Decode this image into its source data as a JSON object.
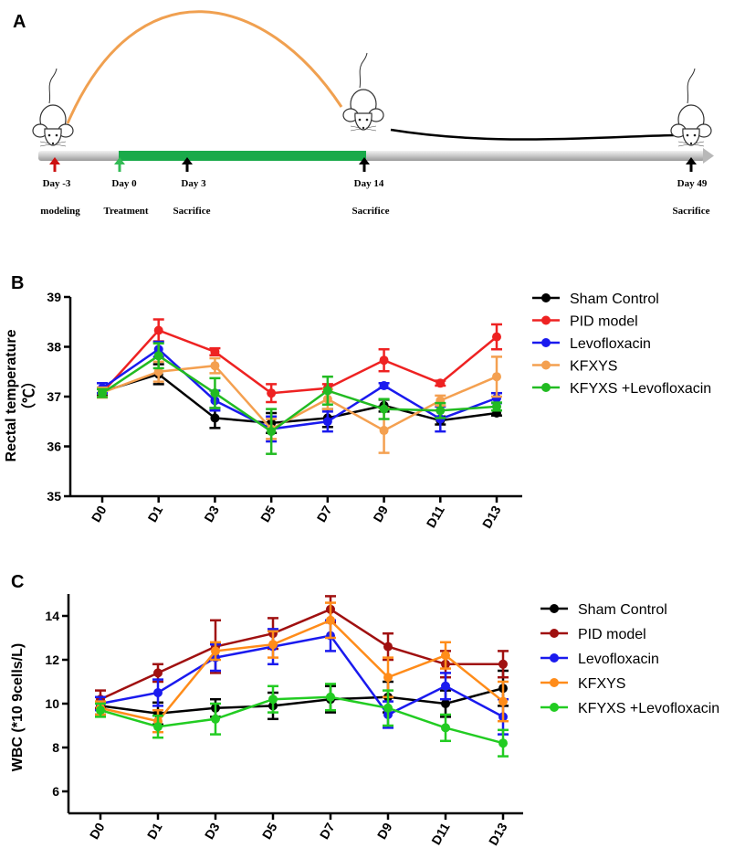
{
  "panels": {
    "a": "A",
    "b": "B",
    "c": "C"
  },
  "timeline": {
    "days": [
      "Day -3",
      "Day 0",
      "Day 3",
      "Day 14",
      "Day 49"
    ],
    "events": [
      "modeling",
      "Treatment",
      "Sacrifice",
      "Sacrifice",
      "Sacrifice"
    ],
    "colors": {
      "bar": "#cfcfcf",
      "treatment": "#1aaa4a",
      "curve_up": "#f0a050",
      "curve_down": "#000000",
      "arrow_model": "#cc1111",
      "arrow_treat": "#33bb55",
      "arrow_sac": "#000000"
    }
  },
  "chart_data": [
    {
      "type": "line",
      "title": "",
      "xlabel": "",
      "ylabel": "Rectal temperature",
      "ylabel_unit": "（℃）",
      "categories": [
        "D0",
        "D1",
        "D3",
        "D5",
        "D7",
        "D9",
        "D11",
        "D13"
      ],
      "ylim": [
        35,
        39
      ],
      "yticks": [
        "35",
        "36",
        "37",
        "38",
        "39"
      ],
      "series": [
        {
          "name": "Sham Control",
          "color": "#000000",
          "values": [
            37.1,
            37.45,
            36.57,
            36.47,
            36.57,
            36.82,
            36.52,
            36.67
          ],
          "errors": [
            0.08,
            0.2,
            0.2,
            0.2,
            0.18,
            0.12,
            0.08,
            0.05
          ]
        },
        {
          "name": "PID model",
          "color": "#ee2222",
          "values": [
            37.08,
            38.33,
            37.9,
            37.07,
            37.17,
            37.73,
            37.27,
            38.2
          ],
          "errors": [
            0.08,
            0.22,
            0.07,
            0.18,
            0.08,
            0.22,
            0.05,
            0.25
          ]
        },
        {
          "name": "Levofloxacin",
          "color": "#1a1aee",
          "values": [
            37.17,
            37.95,
            36.92,
            36.35,
            36.5,
            37.22,
            36.55,
            36.97
          ],
          "errors": [
            0.1,
            0.15,
            0.2,
            0.25,
            0.2,
            0.05,
            0.25,
            0.1
          ]
        },
        {
          "name": "KFXYS",
          "color": "#f4a050",
          "values": [
            37.08,
            37.5,
            37.62,
            36.35,
            36.95,
            36.32,
            36.92,
            37.4
          ],
          "errors": [
            0.1,
            0.2,
            0.15,
            0.2,
            0.2,
            0.45,
            0.1,
            0.4
          ]
        },
        {
          "name": "KFYXS +Levofloxacin",
          "color": "#22bb22",
          "values": [
            37.07,
            37.82,
            37.07,
            36.3,
            37.12,
            36.75,
            36.72,
            36.8
          ],
          "errors": [
            0.08,
            0.25,
            0.3,
            0.45,
            0.28,
            0.2,
            0.15,
            0.08
          ]
        }
      ]
    },
    {
      "type": "line",
      "title": "",
      "xlabel": "",
      "ylabel": "WBC (*10 9cells/L)",
      "categories": [
        "D0",
        "D1",
        "D3",
        "D5",
        "D7",
        "D9",
        "D11",
        "D13"
      ],
      "ylim": [
        5,
        15
      ],
      "yticks": [
        "6",
        "8",
        "10",
        "12",
        "14"
      ],
      "series": [
        {
          "name": "Sham Control",
          "color": "#000000",
          "values": [
            9.9,
            9.55,
            9.8,
            9.9,
            10.2,
            10.3,
            10.0,
            10.7
          ],
          "errors": [
            0.4,
            0.5,
            0.4,
            0.6,
            0.6,
            0.7,
            0.6,
            0.8
          ]
        },
        {
          "name": "PID model",
          "color": "#a01010",
          "values": [
            10.2,
            11.4,
            12.6,
            13.2,
            14.3,
            12.6,
            11.8,
            11.8
          ],
          "errors": [
            0.4,
            0.4,
            1.2,
            0.7,
            0.6,
            0.6,
            0.6,
            0.6
          ]
        },
        {
          "name": "Levofloxacin",
          "color": "#1a1aee",
          "values": [
            10.0,
            10.5,
            12.1,
            12.6,
            13.1,
            9.5,
            10.8,
            9.4
          ],
          "errors": [
            0.3,
            0.6,
            0.6,
            0.8,
            0.7,
            0.6,
            0.6,
            0.8
          ]
        },
        {
          "name": "KFXYS",
          "color": "#ff8c1a",
          "values": [
            9.8,
            9.2,
            12.4,
            12.7,
            13.8,
            11.2,
            12.2,
            10.1
          ],
          "errors": [
            0.3,
            0.5,
            0.4,
            0.6,
            0.8,
            0.9,
            0.6,
            0.9
          ]
        },
        {
          "name": "KFYXS +Levofloxacin",
          "color": "#22cc22",
          "values": [
            9.7,
            8.95,
            9.3,
            10.2,
            10.3,
            9.8,
            8.9,
            8.2
          ],
          "errors": [
            0.3,
            0.5,
            0.7,
            0.6,
            0.6,
            0.8,
            0.6,
            0.6
          ]
        }
      ]
    }
  ]
}
